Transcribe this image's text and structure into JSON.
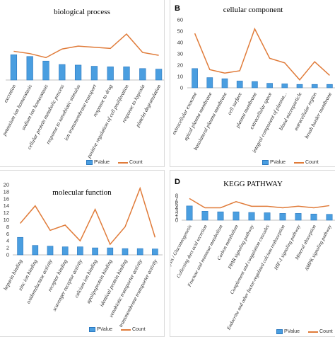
{
  "colors": {
    "bar": "#4a9ee0",
    "bar_edge": "#2a78c0",
    "line": "#e07b39",
    "axis": "#bfbfbf",
    "text": "#333333"
  },
  "chart_data": [
    {
      "panel_letter": "",
      "type": "bar",
      "title": "biological process",
      "categories": [
        "excretion",
        "potassium ion homeostasis",
        "sodium ion homeostasis",
        "cellular protein metabolic process",
        "response to xenobiotic stimulus",
        "ion transmembrane transport",
        "response to drug",
        "positive regulation of cell proliferation",
        "response to hypoxia",
        "platelet degranulation"
      ],
      "series": [
        {
          "name": "PValue",
          "kind": "bar",
          "values": [
            4.4,
            4.1,
            3.3,
            2.7,
            2.6,
            2.4,
            2.3,
            2.3,
            2.0,
            1.9
          ]
        },
        {
          "name": "Count",
          "kind": "line",
          "values": [
            5.0,
            4.6,
            3.9,
            5.4,
            5.9,
            5.7,
            5.5,
            8.0,
            4.8,
            4.3
          ]
        }
      ],
      "ylim": [
        0,
        9
      ],
      "yticks": [],
      "legend": "bottom"
    },
    {
      "panel_letter": "B",
      "type": "bar",
      "title": "cellular component",
      "categories": [
        "extracellular exosome",
        "apical plasma membrane",
        "basolateral plasma membrane",
        "cell surface",
        "plasma membrane",
        "extracellular space",
        "integral component of plasma...",
        "blood microparticle",
        "extracellular region",
        "brush border membrane"
      ],
      "series": [
        {
          "name": "PValue",
          "kind": "bar",
          "values": [
            17,
            9,
            8,
            6,
            5.5,
            4,
            3.5,
            3,
            3,
            3
          ]
        },
        {
          "name": "Count",
          "kind": "line",
          "values": [
            48,
            16,
            13,
            15,
            52,
            26,
            22,
            7,
            23,
            11
          ]
        }
      ],
      "ylim": [
        0,
        60
      ],
      "yticks": [
        0,
        10,
        20,
        30,
        40,
        50,
        60
      ],
      "legend": "bottom"
    },
    {
      "panel_letter": "",
      "type": "bar",
      "title": "molecular function",
      "categories": [
        "heparin binding",
        "zinc ion binding",
        "oxidoreductase activity",
        "receptor binding",
        "scavenger receptor activity",
        "calcium ion binding",
        "apolipoprotein binding",
        "identical protein binding",
        "xenobiotic transporter activity",
        "transmembrane transporter activity"
      ],
      "series": [
        {
          "name": "PValue",
          "kind": "bar",
          "values": [
            5,
            2.7,
            2.5,
            2.3,
            2.3,
            2.0,
            2.0,
            1.8,
            1.8,
            1.7
          ]
        },
        {
          "name": "Count",
          "kind": "line",
          "values": [
            9,
            14,
            7,
            8.5,
            4,
            13,
            3,
            8,
            19,
            5
          ]
        }
      ],
      "ylim": [
        0,
        20
      ],
      "yticks": [
        0,
        2,
        4,
        6,
        8,
        10,
        12,
        14,
        16,
        18,
        20
      ],
      "legend": "bottom"
    },
    {
      "panel_letter": "D",
      "type": "bar",
      "title": "KEGG PATHWAY",
      "categories": [
        "Glycolysis / Gluconeogenesis",
        "Collecting duct acid secretion",
        "Fructose and mannose metabolism",
        "Carbon metabolism",
        "PPAR signaling pathway",
        "Complement and coagulation cascades",
        "Endocrine and other factor-regulated calcium reabsorption",
        "HIF-1 signaling pathway",
        "Mineral absorption",
        "AMPK signaling pathway"
      ],
      "series": [
        {
          "name": "PValue",
          "kind": "bar",
          "values": [
            4.6,
            2.9,
            2.7,
            2.7,
            2.5,
            2.4,
            2.2,
            2.2,
            2.0,
            1.9
          ]
        },
        {
          "name": "Count",
          "kind": "line",
          "values": [
            7,
            4,
            4,
            6,
            4.5,
            4.5,
            4,
            4.5,
            4,
            4.7
          ]
        }
      ],
      "ylim": [
        0,
        8
      ],
      "yticks": [
        0,
        1,
        2,
        3,
        4,
        5,
        6,
        7,
        8
      ],
      "legend": "bottom"
    }
  ]
}
